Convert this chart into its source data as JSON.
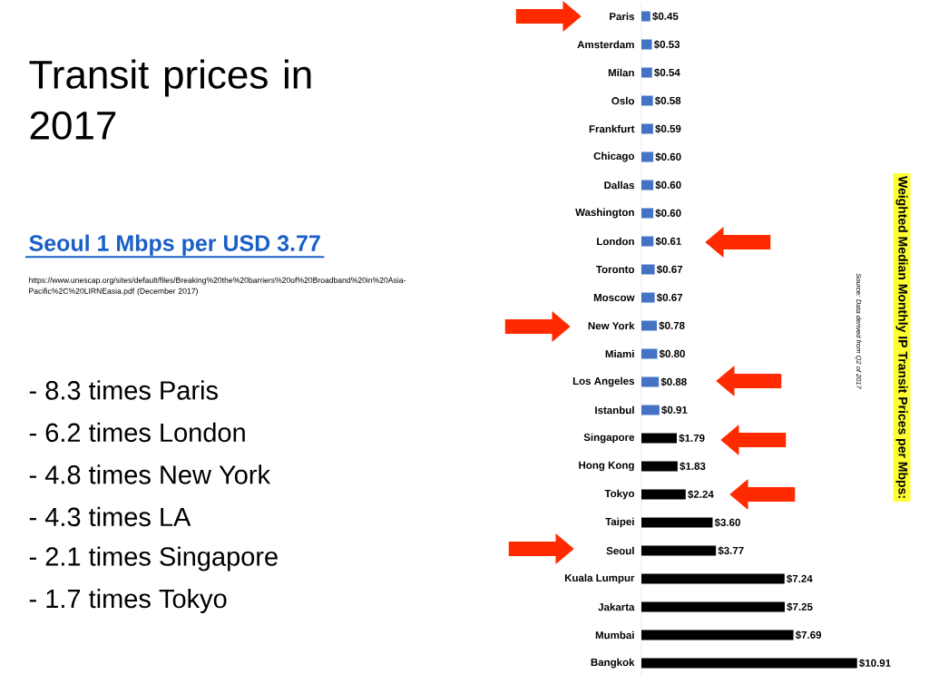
{
  "chart_data": {
    "type": "bar",
    "orientation": "horizontal",
    "title": "Transit prices in 2017",
    "subtitle": "Seoul 1 Mbps per USD 3.77",
    "ylabel": "Weighted Median Monthly IP Transit Prices per Mbps:",
    "annotations": [
      "https://www.unescap.org/sites/default/files/Breaking%20the%20barriers%20of%20Broadband%20in%20Asia-Pacific%2C%20LIRNEasia.pdf (December 2017)",
      "- 8.3 times Paris",
      "- 6.2 times London",
      "- 4.8 times New York",
      "- 4.3 times LA",
      "- 2.1 times Singapore",
      "- 1.7 times Tokyo",
      "Source: Data derived from Q2 of 2017"
    ],
    "categories": [
      "Paris",
      "Amsterdam",
      "Milan",
      "Oslo",
      "Frankfurt",
      "Chicago",
      "Dallas",
      "Washington",
      "London",
      "Toronto",
      "Moscow",
      "New York",
      "Miami",
      "Los Angeles",
      "Istanbul",
      "Singapore",
      "Hong Kong",
      "Tokyo",
      "Taipei",
      "Seoul",
      "Kuala Lumpur",
      "Jakarta",
      "Mumbai",
      "Bangkok"
    ],
    "values": [
      0.45,
      0.53,
      0.54,
      0.58,
      0.59,
      0.6,
      0.6,
      0.6,
      0.61,
      0.67,
      0.67,
      0.78,
      0.8,
      0.88,
      0.91,
      1.79,
      1.83,
      2.24,
      3.6,
      3.77,
      7.24,
      7.25,
      7.69,
      10.91
    ],
    "colors": [
      "#4472c4",
      "#4472c4",
      "#4472c4",
      "#4472c4",
      "#4472c4",
      "#4472c4",
      "#4472c4",
      "#4472c4",
      "#4472c4",
      "#4472c4",
      "#4472c4",
      "#4472c4",
      "#4472c4",
      "#4472c4",
      "#4472c4",
      "#000000",
      "#000000",
      "#000000",
      "#000000",
      "#000000",
      "#000000",
      "#000000",
      "#000000",
      "#000000"
    ],
    "value_labels": [
      "$0.45",
      "$0.53",
      "$0.54",
      "$0.58",
      "$0.59",
      "$0.60",
      "$0.60",
      "$0.60",
      "$0.61",
      "$0.67",
      "$0.67",
      "$0.78",
      "$0.80",
      "$0.88",
      "$0.91",
      "$1.79",
      "$1.83",
      "$2.24",
      "$3.60",
      "$3.77",
      "$7.24",
      "$7.25",
      "$7.69",
      "$10.91"
    ]
  }
}
